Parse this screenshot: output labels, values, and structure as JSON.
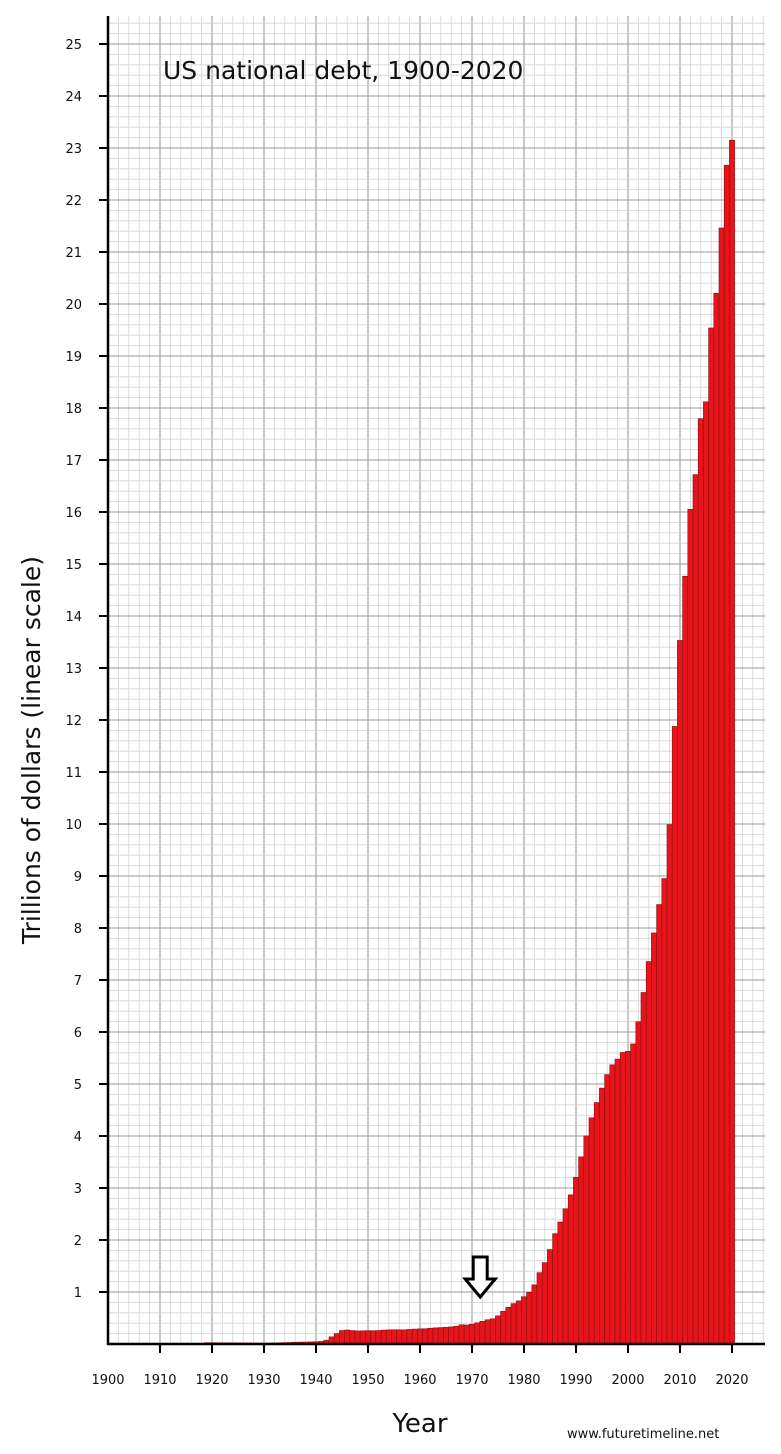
{
  "chart_data": {
    "type": "bar",
    "title": "US national debt, 1900-2020",
    "xlabel": "Year",
    "ylabel": "Trillions of dollars (linear scale)",
    "xlim": [
      1900,
      2025
    ],
    "ylim": [
      0,
      25.5
    ],
    "x_ticks": [
      "1900",
      "1910",
      "1920",
      "1930",
      "1940",
      "1950",
      "1960",
      "1970",
      "1980",
      "1990",
      "2000",
      "2010",
      "2020"
    ],
    "y_ticks": [
      "1",
      "2",
      "3",
      "4",
      "5",
      "6",
      "7",
      "8",
      "9",
      "10",
      "11",
      "12",
      "13",
      "14",
      "15",
      "16",
      "17",
      "18",
      "19",
      "20",
      "21",
      "22",
      "23",
      "24",
      "25"
    ],
    "grid": true,
    "bar_color": "#e8141b",
    "annotation": {
      "type": "down-arrow",
      "year": 1971
    },
    "credit": "www.futuretimeline.net",
    "years": [
      1917,
      1918,
      1919,
      1920,
      1921,
      1922,
      1923,
      1924,
      1925,
      1926,
      1927,
      1928,
      1929,
      1930,
      1931,
      1932,
      1933,
      1934,
      1935,
      1936,
      1937,
      1938,
      1939,
      1940,
      1941,
      1942,
      1943,
      1944,
      1945,
      1946,
      1947,
      1948,
      1949,
      1950,
      1951,
      1952,
      1953,
      1954,
      1955,
      1956,
      1957,
      1958,
      1959,
      1960,
      1961,
      1962,
      1963,
      1964,
      1965,
      1966,
      1967,
      1968,
      1969,
      1970,
      1971,
      1972,
      1973,
      1974,
      1975,
      1976,
      1977,
      1978,
      1979,
      1980,
      1981,
      1982,
      1983,
      1984,
      1985,
      1986,
      1987,
      1988,
      1989,
      1990,
      1991,
      1992,
      1993,
      1994,
      1995,
      1996,
      1997,
      1998,
      1999,
      2000,
      2001,
      2002,
      2003,
      2004,
      2005,
      2006,
      2007,
      2008,
      2009,
      2010,
      2011,
      2012,
      2013,
      2014,
      2015,
      2016,
      2017,
      2018,
      2019,
      2020
    ],
    "values": [
      0.006,
      0.012,
      0.025,
      0.024,
      0.024,
      0.023,
      0.022,
      0.021,
      0.02,
      0.019,
      0.018,
      0.018,
      0.017,
      0.016,
      0.017,
      0.019,
      0.023,
      0.027,
      0.029,
      0.034,
      0.036,
      0.037,
      0.04,
      0.043,
      0.049,
      0.072,
      0.137,
      0.201,
      0.259,
      0.269,
      0.258,
      0.252,
      0.253,
      0.257,
      0.255,
      0.259,
      0.266,
      0.271,
      0.274,
      0.273,
      0.272,
      0.28,
      0.287,
      0.291,
      0.293,
      0.303,
      0.31,
      0.316,
      0.322,
      0.329,
      0.341,
      0.37,
      0.366,
      0.381,
      0.408,
      0.436,
      0.466,
      0.484,
      0.542,
      0.629,
      0.706,
      0.777,
      0.829,
      0.909,
      0.995,
      1.137,
      1.372,
      1.565,
      1.817,
      2.121,
      2.346,
      2.601,
      2.868,
      3.206,
      3.598,
      4.002,
      4.351,
      4.643,
      4.921,
      5.181,
      5.369,
      5.478,
      5.606,
      5.629,
      5.77,
      6.198,
      6.76,
      7.355,
      7.905,
      8.451,
      8.951,
      9.986,
      11.876,
      13.529,
      14.764,
      16.051,
      16.719,
      17.794,
      18.12,
      19.539,
      20.205,
      21.462,
      22.669,
      23.15
    ]
  }
}
